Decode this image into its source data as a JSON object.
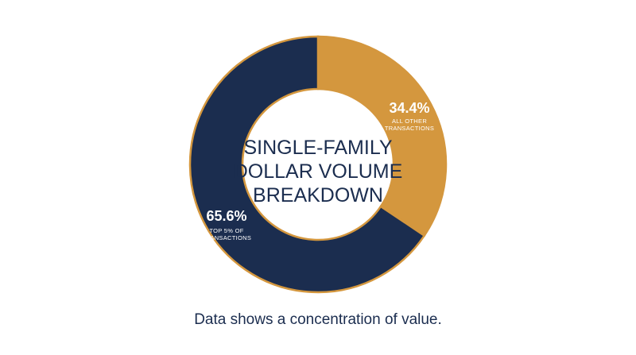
{
  "chart_data": {
    "type": "pie",
    "variant": "donut",
    "title_lines": [
      "SINGLE-FAMILY",
      "DOLLAR VOLUME",
      "BREAKDOWN"
    ],
    "slices": [
      {
        "value": 34.4,
        "label_pct": "34.4%",
        "label_lines": [
          "ALL OTHER",
          "TRANSACTIONS"
        ],
        "color": "#d4973e"
      },
      {
        "value": 65.6,
        "label_pct": "65.6%",
        "label_lines": [
          "TOP 5% OF",
          "TRANSACTIONS"
        ],
        "color": "#1b2d4f"
      }
    ],
    "outline_color": "#d4973e"
  },
  "caption": "Data shows a concentration of value."
}
